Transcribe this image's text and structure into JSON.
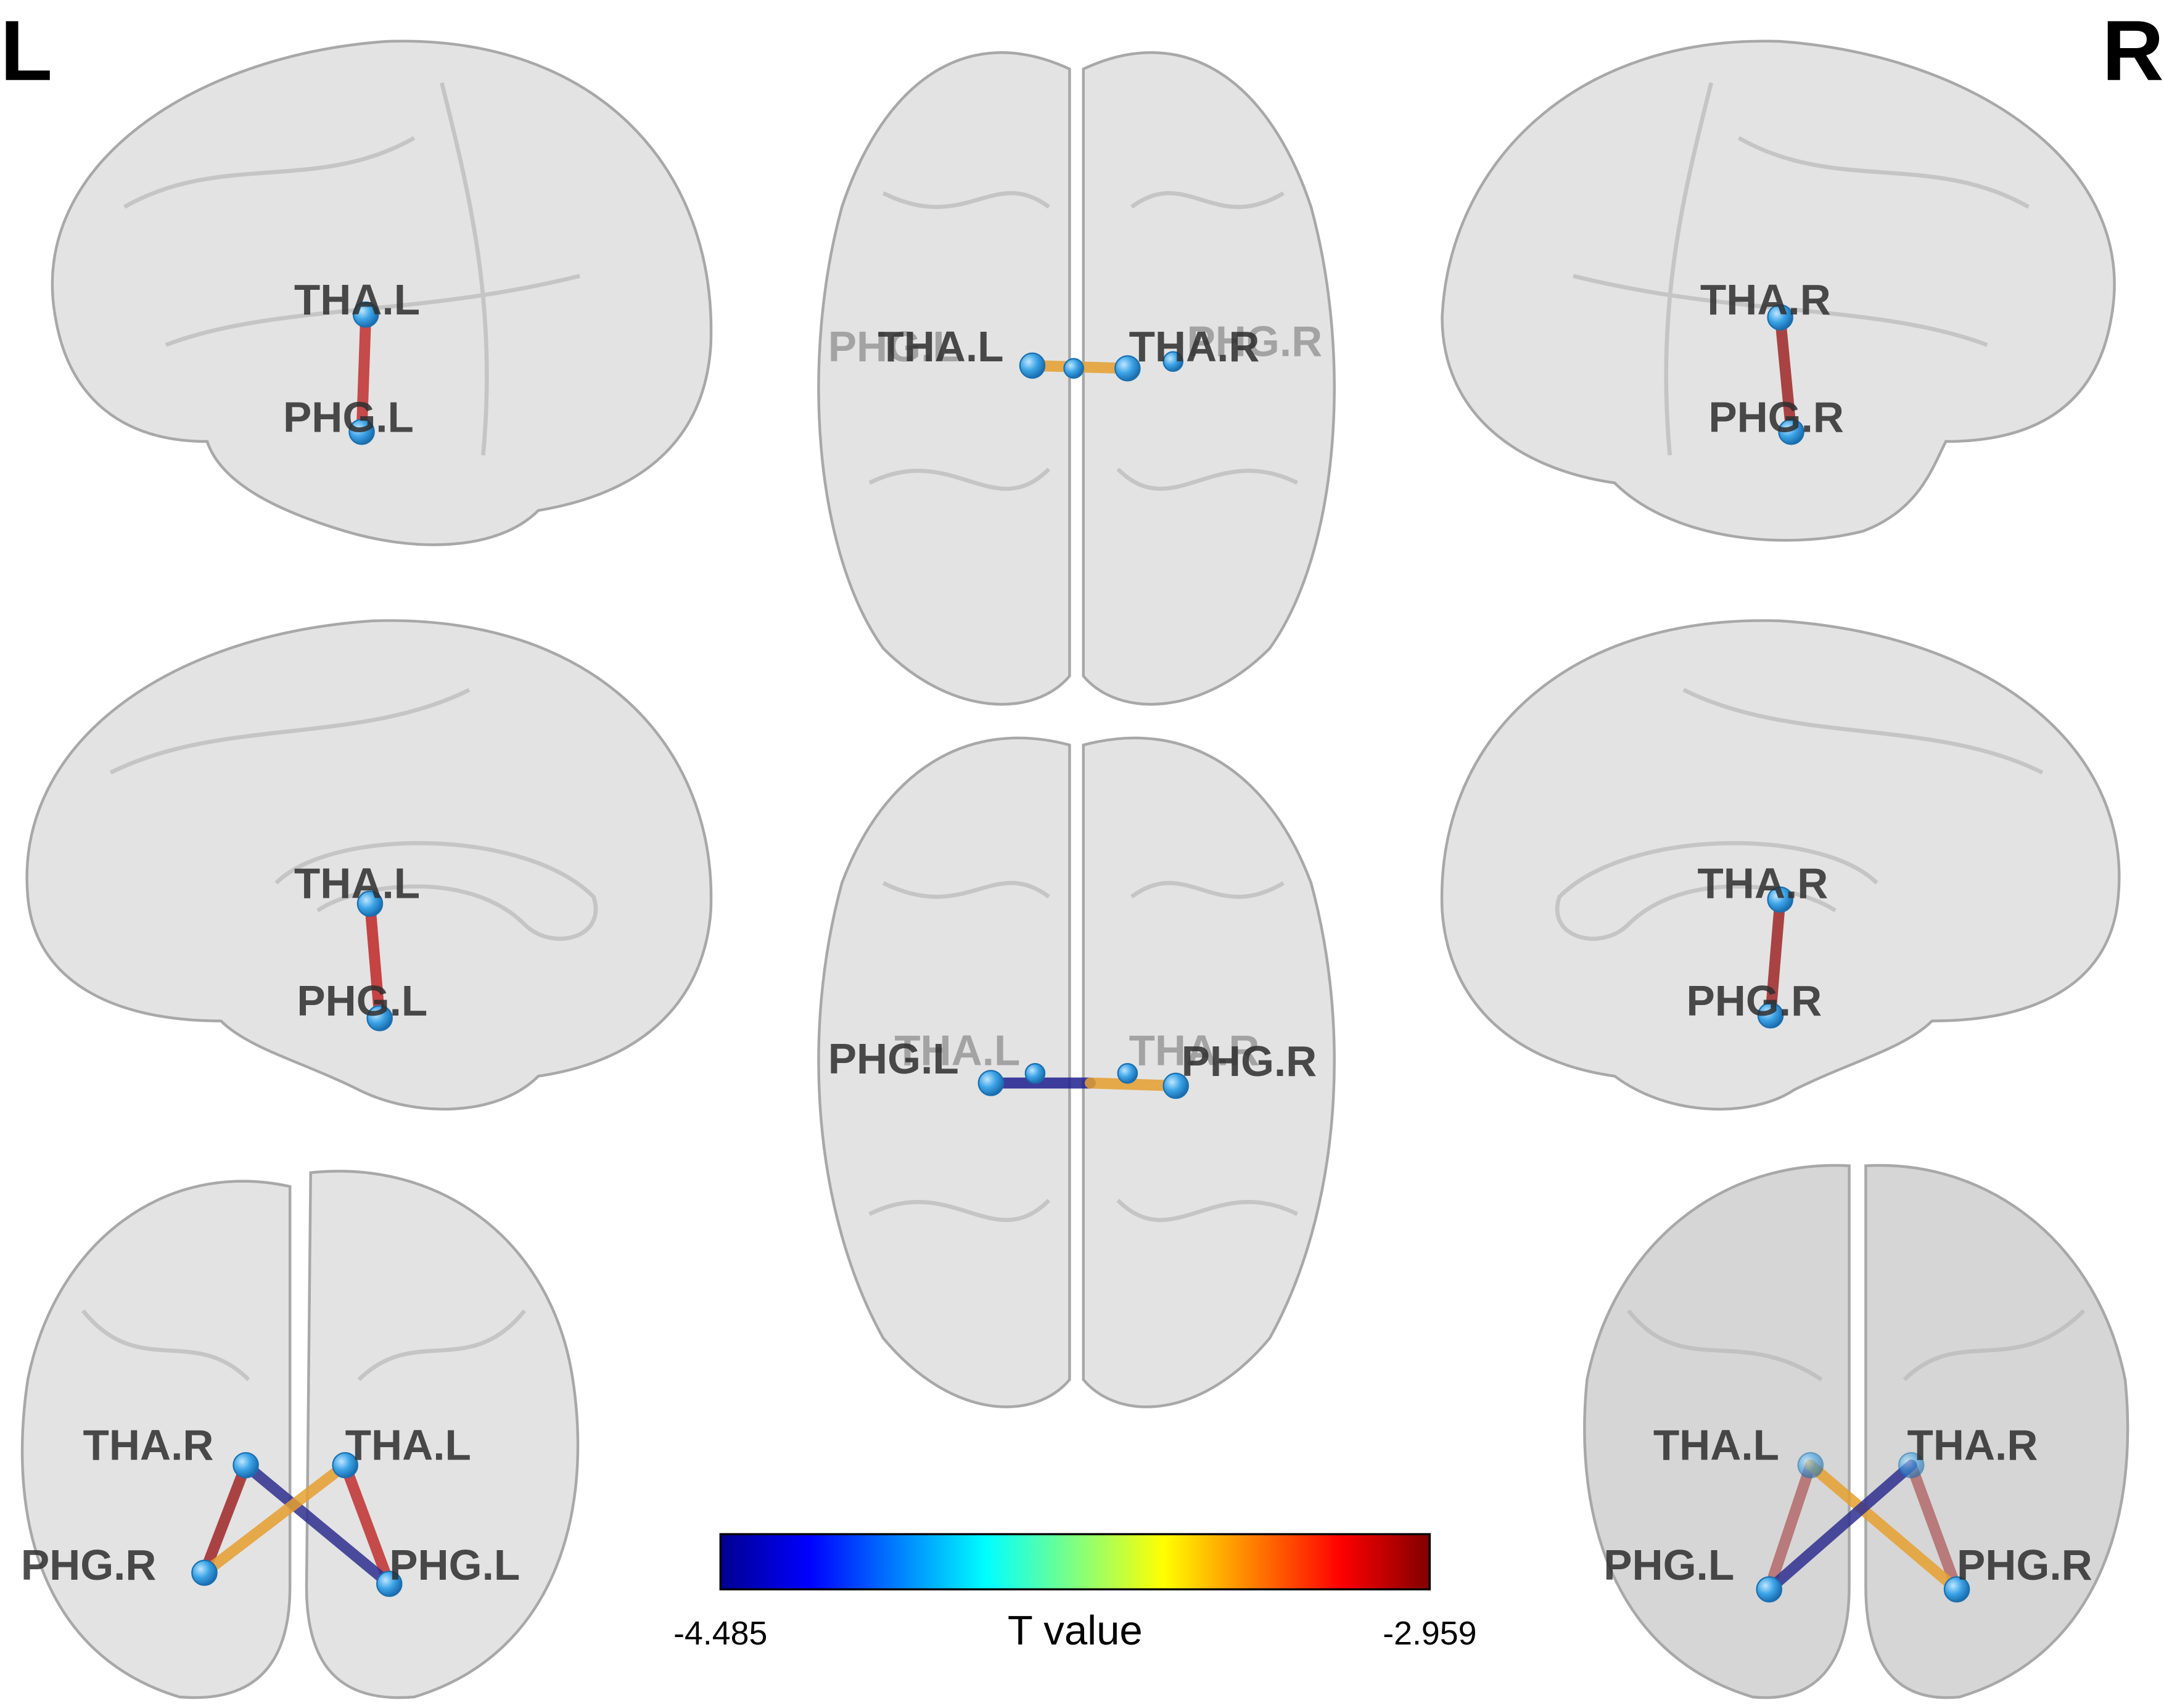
{
  "side_labels": {
    "left": "L",
    "right": "R"
  },
  "views": [
    {
      "labels": [
        "THA.L",
        "PHG.L"
      ]
    },
    {
      "labels": [
        "PHG.L",
        "THA.L",
        "THA.R",
        "PHG.R"
      ]
    },
    {
      "labels": [
        "THA.R",
        "PHG.R"
      ]
    },
    {
      "labels": [
        "THA.L",
        "PHG.L"
      ]
    },
    {
      "labels": [
        "PHG.L",
        "THA.L",
        "THA.R",
        "PHG.R"
      ]
    },
    {
      "labels": [
        "THA.R",
        "PHG.R"
      ]
    },
    {
      "labels": [
        "THA.R",
        "THA.L",
        "PHG.R",
        "PHG.L"
      ]
    },
    {
      "labels": [
        "THA.L",
        "THA.R",
        "PHG.L",
        "PHG.R"
      ]
    }
  ],
  "colorbar": {
    "label": "T value",
    "min": -4.485,
    "max": -2.959
  }
}
